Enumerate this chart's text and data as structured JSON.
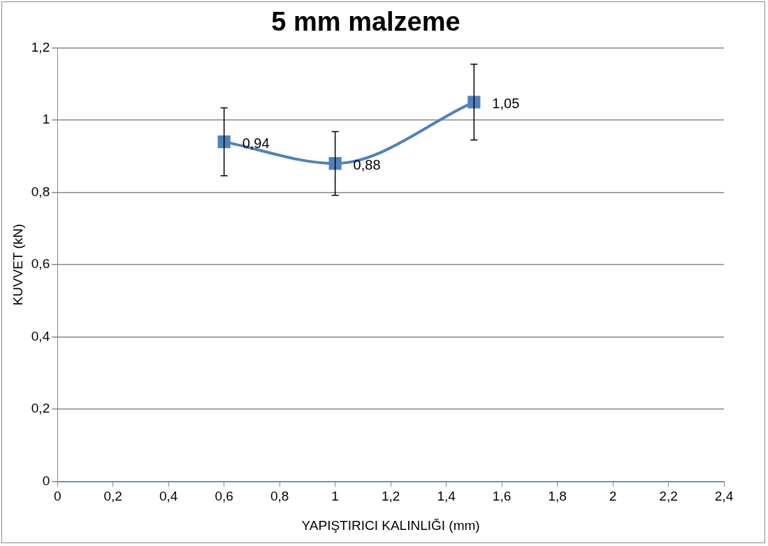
{
  "chart_data": {
    "type": "line",
    "title": "5 mm malzeme",
    "xlabel": "YAPIŞTIRICI KALINLIĞI (mm)",
    "ylabel": "KUVVET (kN)",
    "x": [
      0.6,
      1,
      1.5
    ],
    "series": [
      {
        "color": "#4f81bd",
        "values": [
          0.94,
          0.88,
          1.05
        ],
        "errors": [
          0.094,
          0.088,
          0.105
        ],
        "value_labels": [
          "0,94",
          "0,88",
          "1,05"
        ]
      }
    ],
    "xlim": [
      0,
      2.4
    ],
    "xticks": [
      0,
      {
        "value": 0.2,
        "label": "0,2"
      },
      {
        "value": 0.4,
        "label": "0,4"
      },
      {
        "value": 0.6,
        "label": "0,6"
      },
      {
        "value": 0.8,
        "label": "0,8"
      },
      1,
      {
        "value": 1.2,
        "label": "1,2"
      },
      {
        "value": 1.4,
        "label": "1,4"
      },
      {
        "value": 1.6,
        "label": "1,6"
      },
      {
        "value": 1.8,
        "label": "1,8"
      },
      2,
      {
        "value": 2.2,
        "label": "2,2"
      },
      {
        "value": 2.4,
        "label": "2,4"
      }
    ],
    "ylim": [
      0,
      1.2
    ],
    "yticks": [
      0,
      {
        "value": 0.2,
        "label": "0,2"
      },
      {
        "value": 0.4,
        "label": "0,4"
      },
      {
        "value": 0.6,
        "label": "0,6"
      },
      {
        "value": 0.8,
        "label": "0,8"
      },
      1,
      {
        "value": 1.2,
        "label": "1,2"
      }
    ],
    "grid": "y",
    "legend": false,
    "marker": "square",
    "line_style": "solid"
  }
}
